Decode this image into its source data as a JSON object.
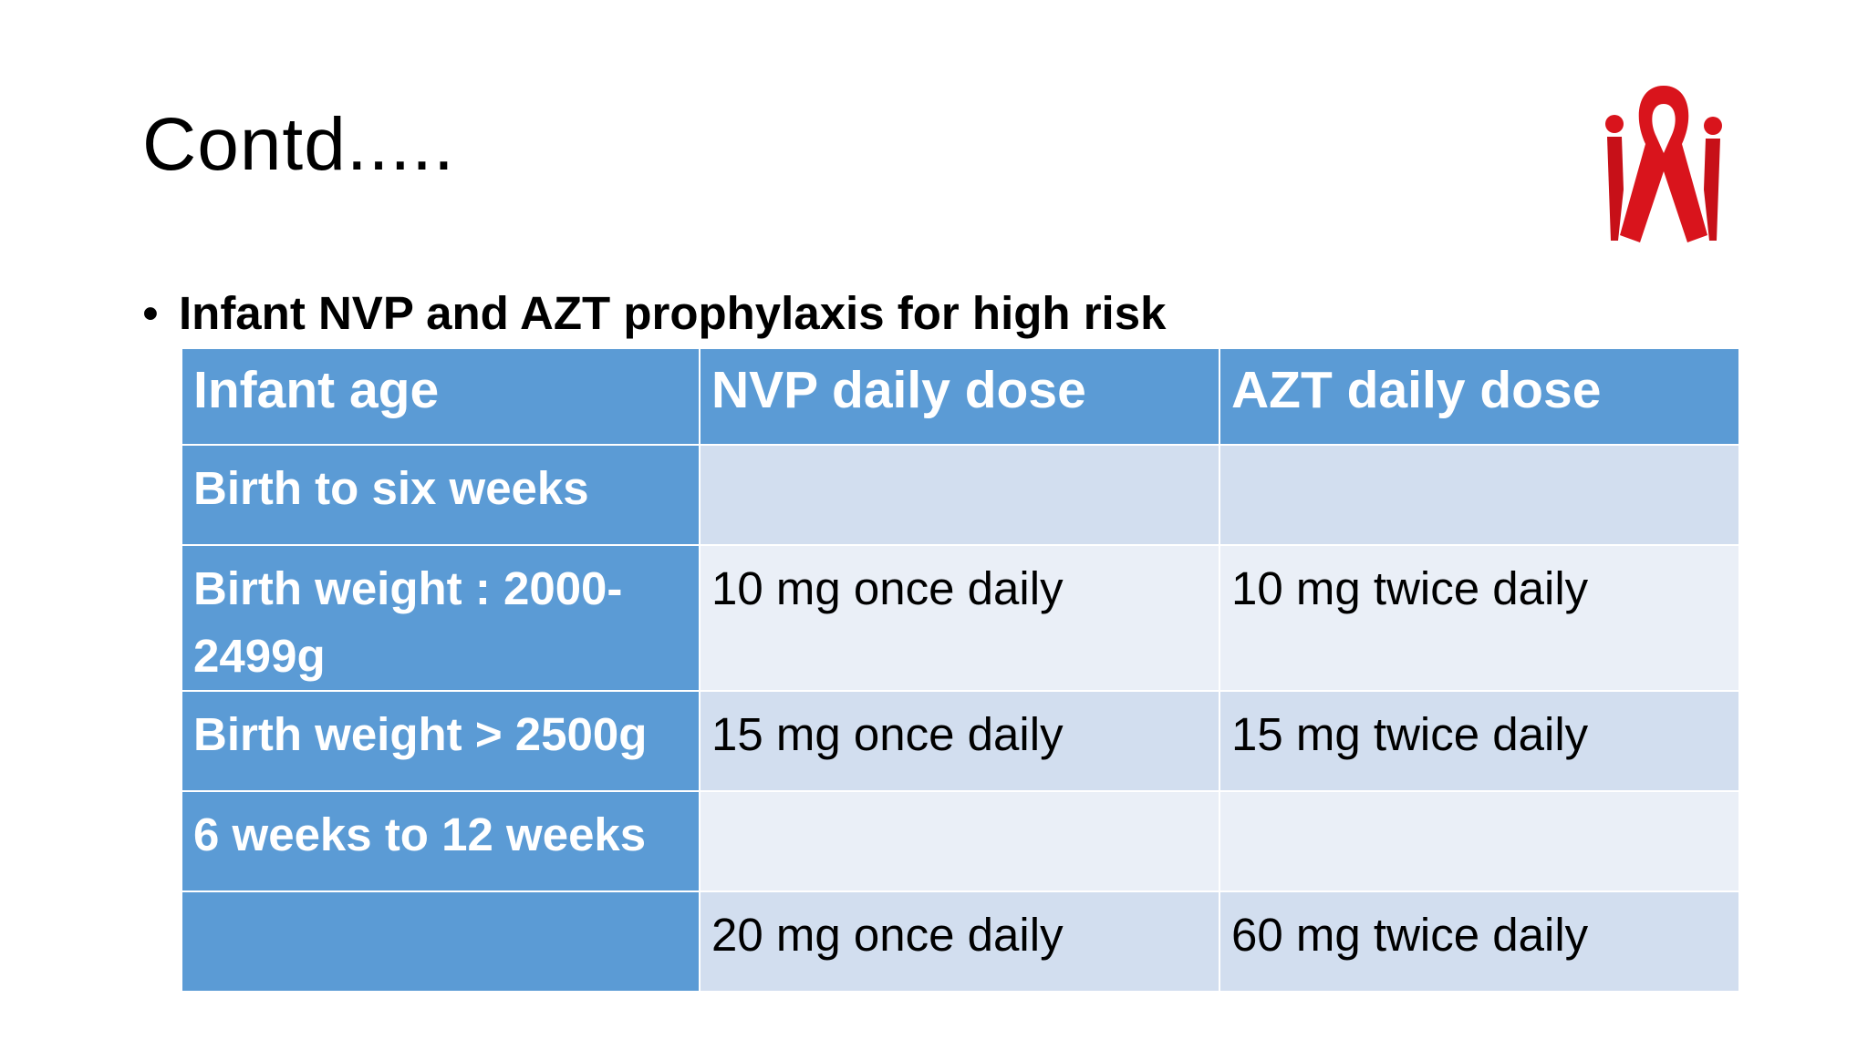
{
  "title": "Contd.....",
  "bullet": "Infant NVP and AZT prophylaxis for high risk",
  "table": {
    "header": [
      "Infant age",
      "NVP daily dose",
      "AZT daily dose"
    ],
    "rows": [
      [
        "Birth to six weeks",
        null,
        null
      ],
      [
        "Birth weight : 2000-2499g",
        "10 mg once daily",
        "10 mg twice daily"
      ],
      [
        "Birth weight > 2500g",
        "15 mg once daily",
        "15 mg twice daily"
      ],
      [
        "6 weeks to 12 weeks",
        null,
        null
      ],
      [
        null,
        "20 mg once daily",
        "60 mg twice daily"
      ]
    ]
  }
}
